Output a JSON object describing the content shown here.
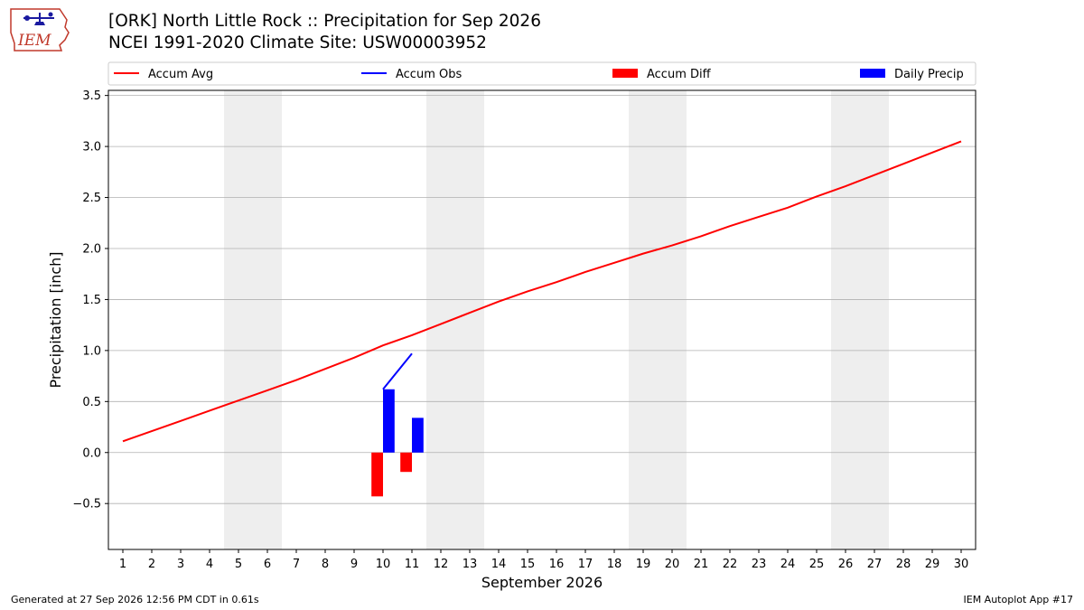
{
  "header": {
    "title_line1": "[ORK] North Little Rock :: Precipitation for Sep 2026",
    "title_line2": "NCEI 1991-2020 Climate Site: USW00003952"
  },
  "logo": {
    "text": "IEM",
    "icon": "iem-iowa-logo"
  },
  "footer": {
    "generated": "Generated at 27 Sep 2026 12:56 PM CDT in 0.61s",
    "app": "IEM Autoplot App #17"
  },
  "colors": {
    "accum_avg": "#ff0000",
    "accum_obs": "#0000ff",
    "accum_diff": "#ff0000",
    "daily_precip": "#0000ff",
    "weekend_band": "#eeeeee",
    "grid": "#b0b0b0"
  },
  "chart_data": {
    "type": "bar",
    "xlabel": "September 2026",
    "ylabel": "Precipitation [inch]",
    "xlim": [
      0.5,
      30.5
    ],
    "ylim": [
      -0.95,
      3.55
    ],
    "yticks": [
      -0.5,
      0.0,
      0.5,
      1.0,
      1.5,
      2.0,
      2.5,
      3.0,
      3.5
    ],
    "ytick_labels": [
      "−0.5",
      "0.0",
      "0.5",
      "1.0",
      "1.5",
      "2.0",
      "2.5",
      "3.0",
      "3.5"
    ],
    "xticks": [
      1,
      2,
      3,
      4,
      5,
      6,
      7,
      8,
      9,
      10,
      11,
      12,
      13,
      14,
      15,
      16,
      17,
      18,
      19,
      20,
      21,
      22,
      23,
      24,
      25,
      26,
      27,
      28,
      29,
      30
    ],
    "grid": "horizontal",
    "legend_position": "top",
    "legend": [
      {
        "label": "Accum Avg",
        "kind": "line",
        "color": "#ff0000"
      },
      {
        "label": "Accum Obs",
        "kind": "line",
        "color": "#0000ff"
      },
      {
        "label": "Accum Diff",
        "kind": "bar",
        "color": "#ff0000"
      },
      {
        "label": "Daily Precip",
        "kind": "bar",
        "color": "#0000ff"
      }
    ],
    "weekend_days": [
      [
        5,
        6
      ],
      [
        12,
        13
      ],
      [
        19,
        20
      ],
      [
        26,
        27
      ]
    ],
    "accum_avg": {
      "x": [
        1,
        2,
        3,
        4,
        5,
        6,
        7,
        8,
        9,
        10,
        11,
        12,
        13,
        14,
        15,
        16,
        17,
        18,
        19,
        20,
        21,
        22,
        23,
        24,
        25,
        26,
        27,
        28,
        29,
        30
      ],
      "y": [
        0.11,
        0.21,
        0.31,
        0.41,
        0.51,
        0.61,
        0.71,
        0.82,
        0.93,
        1.05,
        1.15,
        1.26,
        1.37,
        1.48,
        1.58,
        1.67,
        1.77,
        1.86,
        1.95,
        2.03,
        2.12,
        2.22,
        2.31,
        2.4,
        2.51,
        2.61,
        2.72,
        2.83,
        2.94,
        3.05
      ]
    },
    "accum_obs": {
      "x": [
        10,
        11
      ],
      "y": [
        0.62,
        0.97
      ]
    },
    "accum_diff": {
      "x": [
        10,
        11
      ],
      "values": [
        -0.43,
        -0.19
      ]
    },
    "daily_precip": {
      "x": [
        10,
        11
      ],
      "values": [
        0.62,
        0.34
      ]
    }
  }
}
